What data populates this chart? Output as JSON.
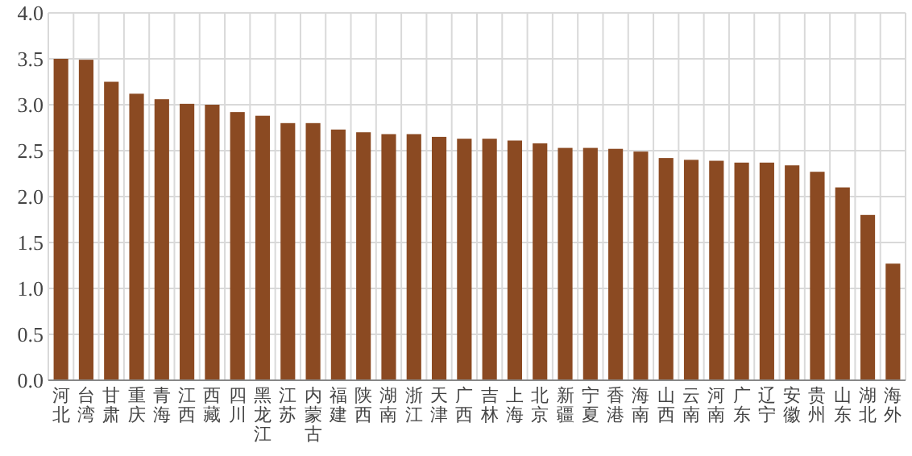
{
  "chart_data": {
    "type": "bar",
    "categories": [
      "河北",
      "台湾",
      "甘肃",
      "重庆",
      "青海",
      "江西",
      "西藏",
      "四川",
      "黑龙江",
      "江苏",
      "内蒙古",
      "福建",
      "陕西",
      "湖南",
      "浙江",
      "天津",
      "广西",
      "吉林",
      "上海",
      "北京",
      "新疆",
      "宁夏",
      "香港",
      "海南",
      "山西",
      "云南",
      "河南",
      "广东",
      "辽宁",
      "安徽",
      "贵州",
      "山东",
      "湖北",
      "海外"
    ],
    "values": [
      3.5,
      3.49,
      3.25,
      3.12,
      3.06,
      3.01,
      3.0,
      2.92,
      2.88,
      2.8,
      2.8,
      2.73,
      2.7,
      2.68,
      2.68,
      2.65,
      2.63,
      2.63,
      2.61,
      2.58,
      2.53,
      2.53,
      2.52,
      2.49,
      2.42,
      2.4,
      2.39,
      2.37,
      2.37,
      2.34,
      2.27,
      2.1,
      1.8,
      1.27
    ],
    "color": "#8b4a22",
    "ylim": [
      0,
      4
    ],
    "yticks": [
      {
        "value": 0,
        "label": "0.0"
      },
      {
        "value": 0.5,
        "label": "0.5"
      },
      {
        "value": 1,
        "label": "1.0"
      },
      {
        "value": 1.5,
        "label": "1.5"
      },
      {
        "value": 2,
        "label": "2.0"
      },
      {
        "value": 2.5,
        "label": "2.5"
      },
      {
        "value": 3,
        "label": "3.0"
      },
      {
        "value": 3.5,
        "label": "3.5"
      },
      {
        "value": 4,
        "label": "4.0"
      }
    ],
    "grid": true
  }
}
